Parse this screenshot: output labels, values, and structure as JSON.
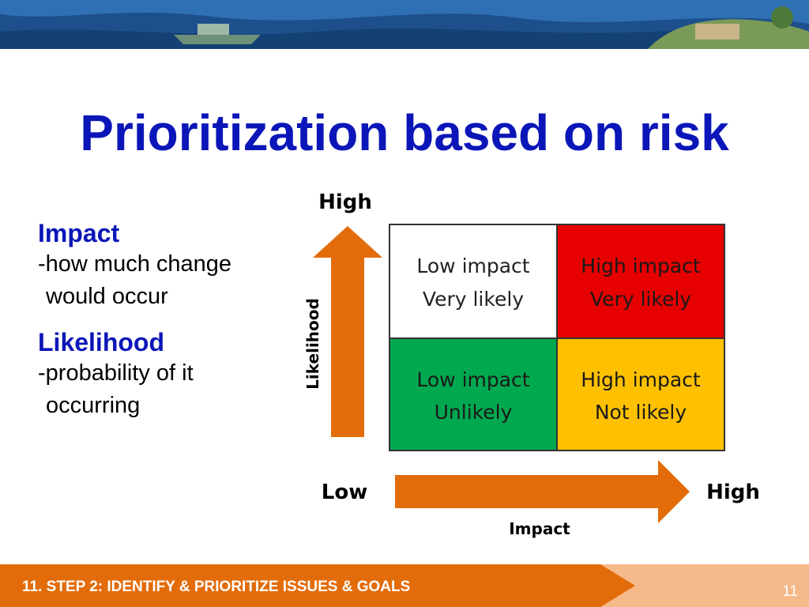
{
  "slide": {
    "title": "Prioritization based on risk",
    "footer": "11. STEP 2: IDENTIFY & PRIORITIZE ISSUES & GOALS",
    "page_number": "11"
  },
  "definitions": [
    {
      "term": "Impact",
      "line1": "-how much change",
      "line2": "would occur"
    },
    {
      "term": "Likelihood",
      "line1": "-probability of it",
      "line2": "occurring"
    }
  ],
  "matrix": {
    "y_axis_high": "High",
    "y_axis_label": "Likelihood",
    "x_axis_low": "Low",
    "x_axis_high": "High",
    "x_axis_label": "Impact",
    "cells": [
      {
        "line1": "Low impact",
        "line2": "Very likely",
        "fill": "#ffffff",
        "text_color": "#222222"
      },
      {
        "line1": "High impact",
        "line2": "Very likely",
        "fill": "#e60000",
        "text_color": "#1a1a1a"
      },
      {
        "line1": "Low impact",
        "line2": "Unlikely",
        "fill": "#00a84f",
        "text_color": "#1a1a1a"
      },
      {
        "line1": "High impact",
        "line2": "Not likely",
        "fill": "#ffc000",
        "text_color": "#1a1a1a"
      }
    ],
    "arrow_color": "#e36c0a"
  }
}
